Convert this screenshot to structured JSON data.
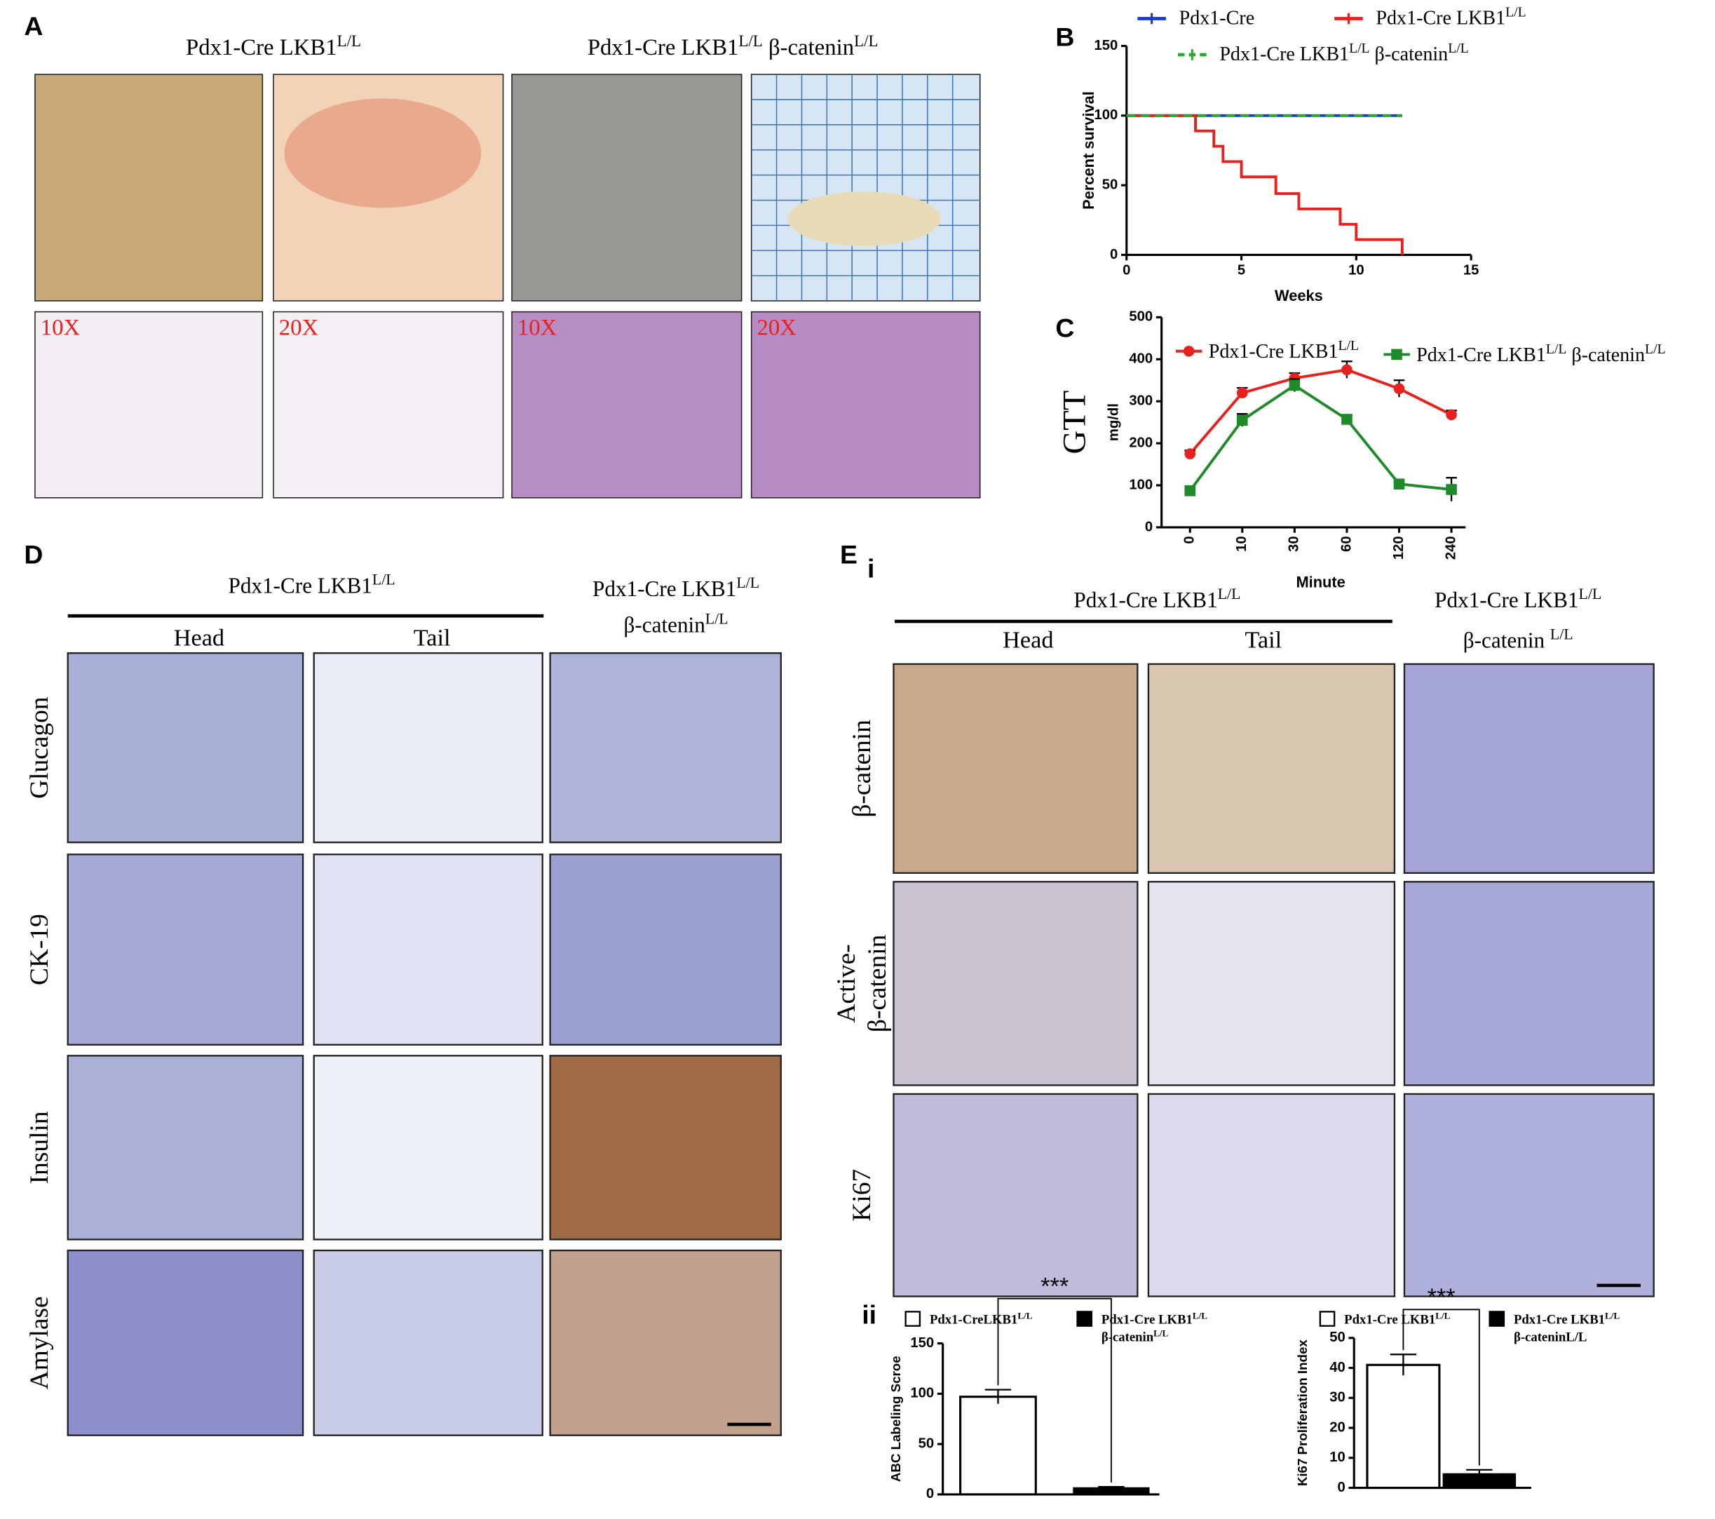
{
  "panel_labels": [
    "A",
    "B",
    "C",
    "D",
    "E",
    "i",
    "ii"
  ],
  "panel_a": {
    "titles": [
      [
        {
          "text": "Pdx1-Cre  LKB1",
          "sup": "L/L"
        }
      ],
      [
        {
          "text": "Pdx1-Cre  LKB1",
          "sup": "L/L"
        },
        {
          "text": "  β-catenin",
          "sup": "L/L"
        }
      ]
    ],
    "magnifications": [
      "10X",
      "20X",
      "10X",
      "20X"
    ]
  },
  "panel_d": {
    "group_title": [
      {
        "text": "Pdx1-Cre  LKB1",
        "sup": "L/L"
      }
    ],
    "columns": [
      "Head",
      "Tail"
    ],
    "right_title": [
      [
        {
          "text": "Pdx1-Cre  LKB1",
          "sup": "L/L"
        }
      ],
      [
        {
          "text": "β-catenin",
          "sup": "L/L"
        }
      ]
    ],
    "rows": [
      [
        "Glucagon"
      ],
      [
        "CK-19"
      ],
      [
        "Insulin"
      ],
      [
        "Amylase"
      ]
    ]
  },
  "panel_e": {
    "group_title": [
      {
        "text": "Pdx1-Cre  LKB1",
        "sup": "L/L"
      }
    ],
    "columns": [
      "Head",
      "Tail"
    ],
    "right_title": [
      [
        {
          "text": "Pdx1-Cre  LKB1",
          "sup": "L/L"
        }
      ],
      [
        {
          "text": "β-catenin ",
          "sup": "L/L"
        }
      ]
    ],
    "rows": [
      [
        "β-catenin"
      ],
      [
        "Active-",
        "β-catenin"
      ],
      [
        "Ki67"
      ]
    ]
  },
  "chart_data": [
    {
      "type": "step",
      "ylabel": "Percent survival",
      "xlabel": "Weeks",
      "xlim": [
        0,
        15
      ],
      "xticks": [
        0,
        5,
        10,
        15
      ],
      "ylim": [
        0,
        150
      ],
      "yticks": [
        0,
        50,
        100,
        150
      ],
      "series": [
        {
          "name": [
            [
              {
                "text": "Pdx1-Cre"
              }
            ]
          ],
          "color": "#1c3ccf",
          "style": "solid",
          "x": [
            0,
            12
          ],
          "values": [
            100,
            100
          ]
        },
        {
          "name": [
            [
              {
                "text": "Pdx1-Cre LKB1",
                "sup": "L/L"
              }
            ]
          ],
          "color": "#e8201e",
          "style": "solid",
          "x": [
            0,
            3,
            3.8,
            4.2,
            5,
            6.5,
            7.5,
            9.3,
            10,
            12
          ],
          "values": [
            100,
            89,
            78,
            67,
            56,
            44,
            33,
            22,
            11,
            0
          ]
        },
        {
          "name": [
            [
              {
                "text": "Pdx1-Cre LKB1",
                "sup": "L/L"
              },
              {
                "text": " β-catenin",
                "sup": "L/L"
              }
            ]
          ],
          "color": "#22b022",
          "style": "dashed",
          "x": [
            0,
            12
          ],
          "values": [
            100,
            100
          ]
        }
      ]
    },
    {
      "type": "line",
      "side_label": "GTT",
      "ylabel": "mg/dl",
      "xlabel": "Minute",
      "categories": [
        "0",
        "10",
        "30",
        "60",
        "120",
        "240"
      ],
      "ylim": [
        0,
        500
      ],
      "yticks": [
        0,
        100,
        200,
        300,
        400,
        500
      ],
      "series": [
        {
          "name": [
            [
              {
                "text": "Pdx1-Cre LKB1",
                "sup": "L/L"
              }
            ]
          ],
          "color": "#e8201e",
          "marker": "circle",
          "values": [
            175,
            320,
            355,
            375,
            330,
            268
          ],
          "errors": [
            8,
            12,
            12,
            20,
            20,
            10
          ]
        },
        {
          "name": [
            [
              {
                "text": "Pdx1-Cre LKB1",
                "sup": "L/L"
              },
              {
                "text": " β-catenin",
                "sup": "L/L"
              }
            ]
          ],
          "color": "#1f8a2a",
          "marker": "square",
          "values": [
            87,
            255,
            338,
            257,
            103,
            90
          ],
          "errors": [
            5,
            15,
            15,
            10,
            5,
            28
          ]
        }
      ]
    },
    {
      "type": "bar",
      "ylabel": "ABC Labeling Scroe",
      "annotation": "***",
      "ylim": [
        0,
        150
      ],
      "yticks": [
        0,
        50,
        100,
        150
      ],
      "series": [
        {
          "name": [
            [
              {
                "text": "Pdx1-CreLKB1",
                "sup": "L/L"
              }
            ]
          ],
          "color": "#ffffff",
          "values": [
            97
          ],
          "errors": [
            7
          ]
        },
        {
          "name": [
            [
              {
                "text": "Pdx1-Cre LKB1",
                "sup": "L/L"
              }
            ],
            [
              {
                "text": "β-catenin",
                "sup": "L/L"
              }
            ]
          ],
          "color": "#000000",
          "values": [
            6
          ],
          "errors": [
            1.5
          ]
        }
      ]
    },
    {
      "type": "bar",
      "ylabel": "Ki67 Proliferation Index",
      "annotation": "***",
      "ylim": [
        0,
        50
      ],
      "yticks": [
        0,
        10,
        20,
        30,
        40,
        50
      ],
      "series": [
        {
          "name": [
            [
              {
                "text": "Pdx1-Cre LKB1",
                "sup": "L/L"
              }
            ]
          ],
          "color": "#ffffff",
          "values": [
            41
          ],
          "errors": [
            3.5
          ]
        },
        {
          "name": [
            [
              {
                "text": "Pdx1-Cre LKB1",
                "sup": "L/L"
              }
            ],
            [
              {
                "text": "β-cateninL/L"
              }
            ]
          ],
          "color": "#000000",
          "values": [
            4.5
          ],
          "errors": [
            1.5
          ]
        }
      ]
    }
  ]
}
